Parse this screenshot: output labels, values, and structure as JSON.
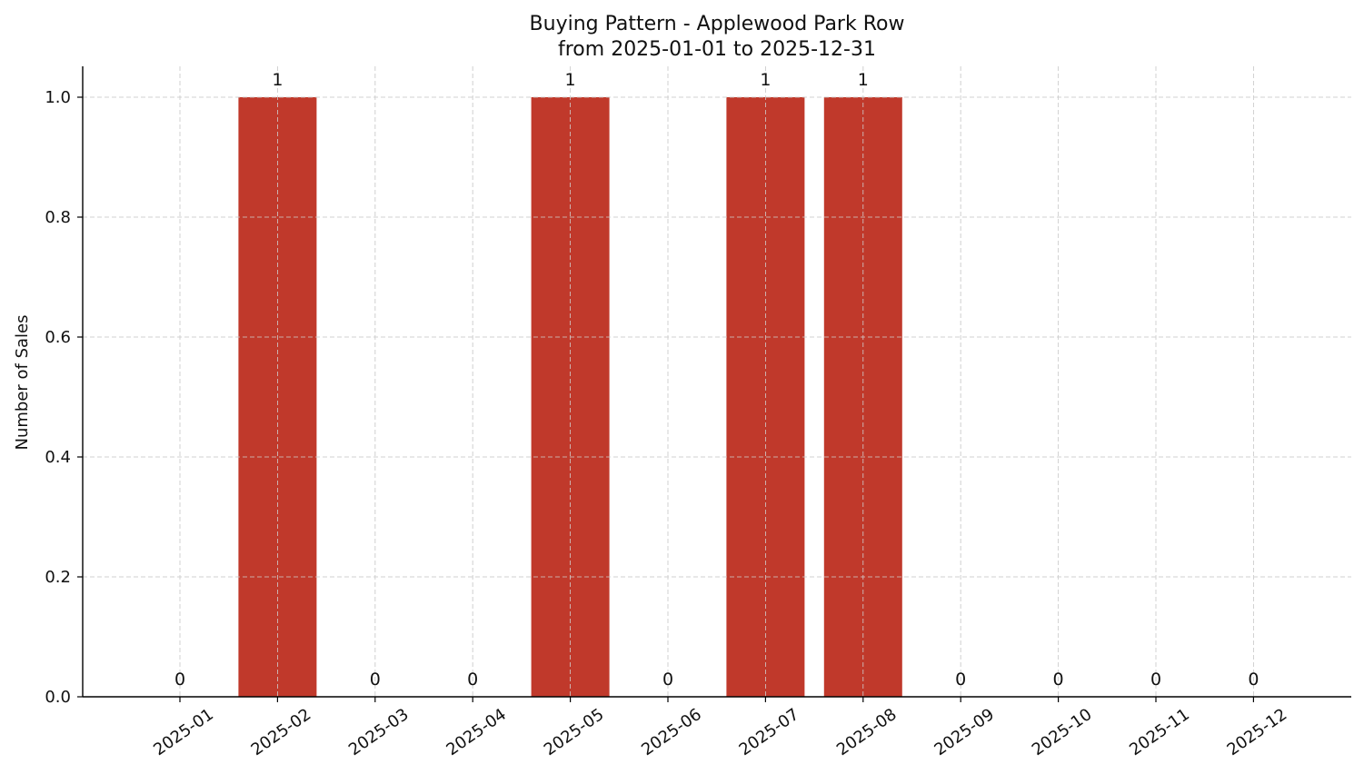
{
  "chart_data": {
    "type": "bar",
    "title": "Buying Pattern - Applewood Park Row",
    "subtitle": "from 2025-01-01 to 2025-12-31",
    "xlabel": "",
    "ylabel": "Number of Sales",
    "categories": [
      "2025-01",
      "2025-02",
      "2025-03",
      "2025-04",
      "2025-05",
      "2025-06",
      "2025-07",
      "2025-08",
      "2025-09",
      "2025-10",
      "2025-11",
      "2025-12"
    ],
    "values": [
      0,
      1,
      0,
      0,
      1,
      0,
      1,
      1,
      0,
      0,
      0,
      0
    ],
    "data_labels": [
      "0",
      "1",
      "0",
      "0",
      "1",
      "0",
      "1",
      "1",
      "0",
      "0",
      "0",
      "0"
    ],
    "ylim": [
      0,
      1.05
    ],
    "yticks": [
      "0.0",
      "0.2",
      "0.4",
      "0.6",
      "0.8",
      "1.0"
    ],
    "ytick_values": [
      0,
      0.2,
      0.4,
      0.6,
      0.8,
      1.0
    ],
    "bar_color": "#c0392b",
    "grid": true,
    "legend": "none"
  }
}
